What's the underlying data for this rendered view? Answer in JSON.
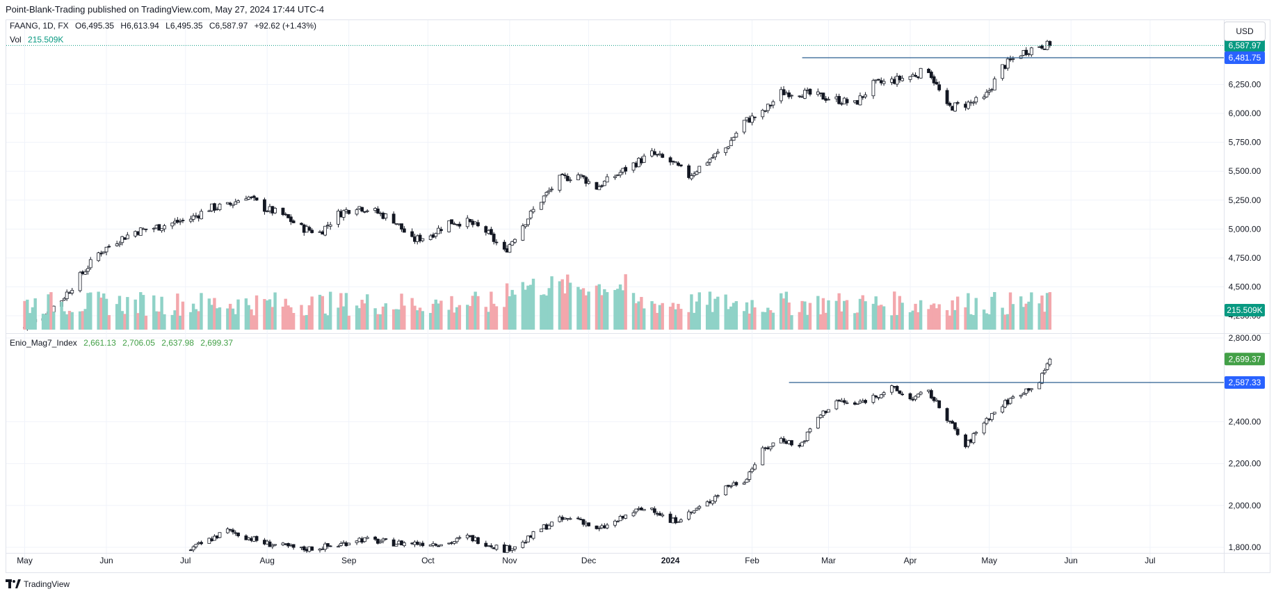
{
  "header": {
    "published": "Point-Blank-Trading published on TradingView.com, May 27, 2024 17:44 UTC-4"
  },
  "legend_main": {
    "symbol": "FAANG, 1D, FX",
    "open": "O6,495.35",
    "high": "H6,613.94",
    "low": "L6,495.35",
    "close": "C6,587.97",
    "change": "+92.62 (+1.43%)",
    "vol_label": "Vol",
    "vol_value": "215.509K"
  },
  "legend_lower": {
    "symbol": "Enio_Mag7_Index",
    "open": "2,661.13",
    "high": "2,706.05",
    "low": "2,637.98",
    "close": "2,699.37"
  },
  "currency": "USD",
  "footer": {
    "brand": "TradingView"
  },
  "colors": {
    "up": "#089981",
    "down": "#f23645",
    "vol_up": "#8fd2c7",
    "vol_down": "#f3a7ac",
    "line": "#2962ff",
    "last_price": "#089981"
  },
  "chart_data": [
    {
      "type": "candlestick",
      "title": "FAANG, 1D, FX",
      "y_ticks": [
        4250,
        4500,
        4750,
        5000,
        5250,
        5500,
        5750,
        6000,
        6250
      ],
      "y_tick_labels": [
        "4,250.00",
        "4,500.00",
        "4,750.00",
        "5,000.00",
        "5,250.00",
        "5,500.00",
        "5,750.00",
        "6,000.00",
        "6,250.00"
      ],
      "ylim": [
        4130,
        6620
      ],
      "last_price": 6587.97,
      "last_price_label": "6,587.97",
      "horizontal_line": 6481.75,
      "horizontal_line_label": "6,481.75",
      "volume_last_label": "215.509K",
      "close_path": [
        [
          "2023-05-01",
          4148
        ],
        [
          "2023-05-08",
          4250
        ],
        [
          "2023-05-15",
          4390
        ],
        [
          "2023-05-22",
          4590
        ],
        [
          "2023-05-29",
          4790
        ],
        [
          "2023-06-05",
          4900
        ],
        [
          "2023-06-12",
          4980
        ],
        [
          "2023-06-19",
          5010
        ],
        [
          "2023-06-26",
          5050
        ],
        [
          "2023-07-03",
          5090
        ],
        [
          "2023-07-10",
          5180
        ],
        [
          "2023-07-17",
          5200
        ],
        [
          "2023-07-24",
          5290
        ],
        [
          "2023-07-31",
          5180
        ],
        [
          "2023-08-07",
          5120
        ],
        [
          "2023-08-14",
          5010
        ],
        [
          "2023-08-21",
          4970
        ],
        [
          "2023-08-28",
          5130
        ],
        [
          "2023-09-04",
          5200
        ],
        [
          "2023-09-11",
          5150
        ],
        [
          "2023-09-18",
          5080
        ],
        [
          "2023-09-25",
          4900
        ],
        [
          "2023-10-02",
          4950
        ],
        [
          "2023-10-09",
          5060
        ],
        [
          "2023-10-16",
          5060
        ],
        [
          "2023-10-23",
          4980
        ],
        [
          "2023-10-30",
          4800
        ],
        [
          "2023-11-06",
          5040
        ],
        [
          "2023-11-13",
          5250
        ],
        [
          "2023-11-20",
          5430
        ],
        [
          "2023-11-27",
          5470
        ],
        [
          "2023-12-04",
          5360
        ],
        [
          "2023-12-11",
          5460
        ],
        [
          "2023-12-18",
          5560
        ],
        [
          "2023-12-25",
          5650
        ],
        [
          "2024-01-01",
          5580
        ],
        [
          "2024-01-08",
          5460
        ],
        [
          "2024-01-15",
          5590
        ],
        [
          "2024-01-22",
          5700
        ],
        [
          "2024-01-29",
          5930
        ],
        [
          "2024-02-05",
          6000
        ],
        [
          "2024-02-12",
          6180
        ],
        [
          "2024-02-19",
          6180
        ],
        [
          "2024-02-26",
          6150
        ],
        [
          "2024-03-04",
          6120
        ],
        [
          "2024-03-11",
          6080
        ],
        [
          "2024-03-18",
          6250
        ],
        [
          "2024-03-25",
          6280
        ],
        [
          "2024-04-01",
          6320
        ],
        [
          "2024-04-08",
          6380
        ],
        [
          "2024-04-15",
          6050
        ],
        [
          "2024-04-22",
          6080
        ],
        [
          "2024-04-29",
          6120
        ],
        [
          "2024-05-06",
          6400
        ],
        [
          "2024-05-13",
          6520
        ],
        [
          "2024-05-20",
          6590
        ],
        [
          "2024-05-24",
          6588
        ]
      ]
    },
    {
      "type": "candlestick",
      "title": "Enio_Mag7_Index",
      "y_ticks": [
        1800,
        2000,
        2200,
        2400,
        2800
      ],
      "y_tick_labels": [
        "1,800.00",
        "2,000.00",
        "2,200.00",
        "2,400.00",
        "2,800.00"
      ],
      "ylim": [
        1790,
        2820
      ],
      "last_price": 2699.37,
      "last_price_label": "2,699.37",
      "horizontal_line": 2587.33,
      "horizontal_line_label": "2,587.33",
      "close_path": [
        [
          "2023-07-03",
          1790
        ],
        [
          "2023-07-17",
          1880
        ],
        [
          "2023-07-31",
          1820
        ],
        [
          "2023-08-14",
          1790
        ],
        [
          "2023-08-28",
          1810
        ],
        [
          "2023-09-04",
          1840
        ],
        [
          "2023-09-18",
          1820
        ],
        [
          "2023-10-09",
          1820
        ],
        [
          "2023-10-16",
          1850
        ],
        [
          "2023-10-30",
          1790
        ],
        [
          "2023-11-06",
          1820
        ],
        [
          "2023-11-13",
          1890
        ],
        [
          "2023-11-20",
          1930
        ],
        [
          "2023-11-27",
          1940
        ],
        [
          "2023-12-04",
          1880
        ],
        [
          "2023-12-11",
          1920
        ],
        [
          "2023-12-18",
          1970
        ],
        [
          "2023-12-25",
          1990
        ],
        [
          "2024-01-01",
          1920
        ],
        [
          "2024-01-08",
          1960
        ],
        [
          "2024-01-15",
          2010
        ],
        [
          "2024-01-22",
          2090
        ],
        [
          "2024-01-29",
          2120
        ],
        [
          "2024-02-05",
          2260
        ],
        [
          "2024-02-12",
          2320
        ],
        [
          "2024-02-19",
          2280
        ],
        [
          "2024-02-26",
          2420
        ],
        [
          "2024-03-04",
          2500
        ],
        [
          "2024-03-11",
          2480
        ],
        [
          "2024-03-18",
          2520
        ],
        [
          "2024-03-25",
          2560
        ],
        [
          "2024-04-01",
          2510
        ],
        [
          "2024-04-08",
          2540
        ],
        [
          "2024-04-15",
          2420
        ],
        [
          "2024-04-22",
          2280
        ],
        [
          "2024-04-29",
          2400
        ],
        [
          "2024-05-06",
          2480
        ],
        [
          "2024-05-13",
          2540
        ],
        [
          "2024-05-20",
          2590
        ],
        [
          "2024-05-24",
          2699
        ]
      ]
    }
  ],
  "x_axis": {
    "ticks": [
      [
        "2023-05-01",
        "May"
      ],
      [
        "2023-06-01",
        "Jun"
      ],
      [
        "2023-07-01",
        "Jul"
      ],
      [
        "2023-08-01",
        "Aug"
      ],
      [
        "2023-09-01",
        "Sep"
      ],
      [
        "2023-10-01",
        "Oct"
      ],
      [
        "2023-11-01",
        "Nov"
      ],
      [
        "2023-12-01",
        "Dec"
      ],
      [
        "2024-01-01",
        "2024"
      ],
      [
        "2024-02-01",
        "Feb"
      ],
      [
        "2024-03-01",
        "Mar"
      ],
      [
        "2024-04-01",
        "Apr"
      ],
      [
        "2024-05-01",
        "May"
      ],
      [
        "2024-06-01",
        "Jun"
      ],
      [
        "2024-07-01",
        "Jul"
      ]
    ]
  }
}
